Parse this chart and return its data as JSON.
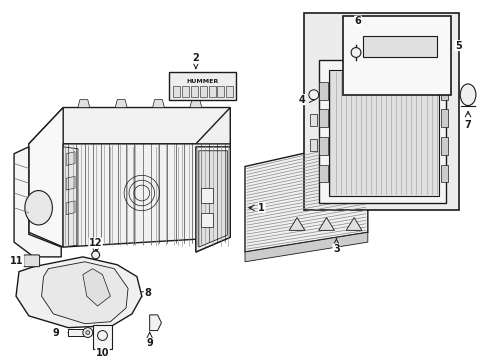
{
  "bg_color": "#ffffff",
  "line_color": "#1a1a1a",
  "gray_light": "#f2f2f2",
  "gray_med": "#e0e0e0",
  "gray_dark": "#cccccc",
  "gray_fill": "#d8d8d8",
  "inset_bg": "#ebebeb",
  "lw_main": 1.0,
  "lw_thin": 0.5,
  "figsize": [
    4.89,
    3.6
  ],
  "dpi": 100
}
